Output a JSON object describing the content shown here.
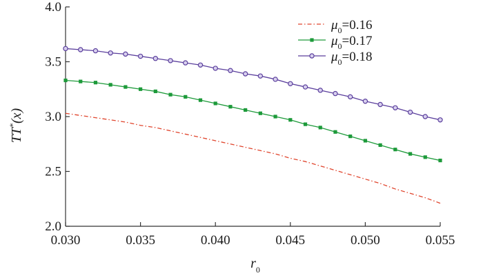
{
  "chart_data": {
    "type": "line",
    "title": "",
    "xlabel": "r0",
    "xlabel_main": "r",
    "xlabel_sub": "0",
    "ylabel": "TT*(x)",
    "ylabel_main": "TT",
    "ylabel_sup": "*",
    "ylabel_tail": "(x)",
    "xlim": [
      0.03,
      0.055
    ],
    "ylim": [
      2.0,
      4.0
    ],
    "xticks": [
      "0.030",
      "0.035",
      "0.040",
      "0.045",
      "0.050",
      "0.055"
    ],
    "yticks": [
      "2.0",
      "2.5",
      "3.0",
      "3.5",
      "4.0"
    ],
    "xtick_values": [
      0.03,
      0.035,
      0.04,
      0.045,
      0.05,
      0.055
    ],
    "ytick_values": [
      2.0,
      2.5,
      3.0,
      3.5,
      4.0
    ],
    "grid": false,
    "legend_position": "top-right",
    "x": [
      0.03,
      0.031,
      0.032,
      0.033,
      0.034,
      0.035,
      0.036,
      0.037,
      0.038,
      0.039,
      0.04,
      0.041,
      0.042,
      0.043,
      0.044,
      0.045,
      0.046,
      0.047,
      0.048,
      0.049,
      0.05,
      0.051,
      0.052,
      0.053,
      0.054,
      0.055
    ],
    "series": [
      {
        "name": "μ0=0.16",
        "legend_mu": "μ",
        "legend_sub": "0",
        "legend_value": "=0.16",
        "color": "#e0442c",
        "style": "dash-dot",
        "marker": "none",
        "values": [
          3.03,
          3.01,
          2.99,
          2.97,
          2.95,
          2.92,
          2.9,
          2.87,
          2.84,
          2.81,
          2.78,
          2.75,
          2.72,
          2.69,
          2.66,
          2.62,
          2.59,
          2.55,
          2.51,
          2.47,
          2.43,
          2.39,
          2.34,
          2.3,
          2.26,
          2.21
        ]
      },
      {
        "name": "μ0=0.17",
        "legend_mu": "μ",
        "legend_sub": "0",
        "legend_value": "=0.17",
        "color": "#1d9a3a",
        "style": "solid",
        "marker": "square",
        "values": [
          3.33,
          3.32,
          3.31,
          3.29,
          3.27,
          3.25,
          3.23,
          3.2,
          3.18,
          3.15,
          3.12,
          3.09,
          3.06,
          3.03,
          3.0,
          2.97,
          2.93,
          2.9,
          2.86,
          2.82,
          2.78,
          2.74,
          2.7,
          2.66,
          2.63,
          2.6
        ]
      },
      {
        "name": "μ0=0.18",
        "legend_mu": "μ",
        "legend_sub": "0",
        "legend_value": "=0.18",
        "color": "#5a3e9c",
        "style": "solid",
        "marker": "circle",
        "values": [
          3.62,
          3.61,
          3.6,
          3.58,
          3.57,
          3.55,
          3.53,
          3.51,
          3.49,
          3.47,
          3.44,
          3.42,
          3.39,
          3.37,
          3.34,
          3.3,
          3.27,
          3.24,
          3.21,
          3.18,
          3.14,
          3.11,
          3.08,
          3.04,
          3.0,
          2.97
        ]
      }
    ]
  }
}
